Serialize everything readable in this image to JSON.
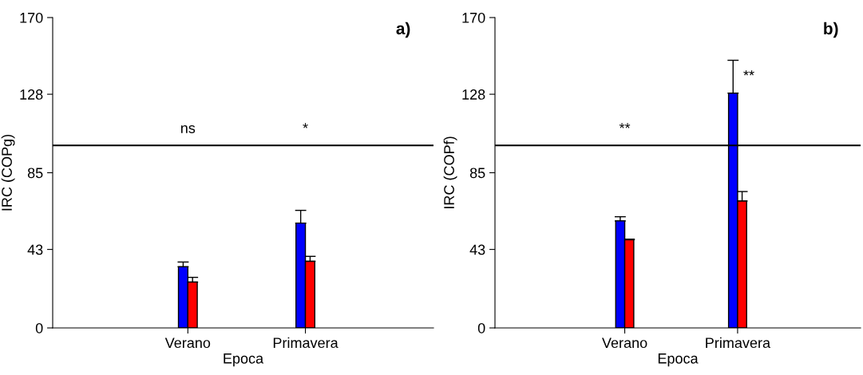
{
  "chart_data": [
    {
      "type": "bar",
      "title": "a)",
      "xlabel": "Epoca",
      "ylabel": "IRC (COPg)",
      "categories": [
        "Verano",
        "Primavera"
      ],
      "series": [
        {
          "color": "#0000ff",
          "values": [
            33.5,
            57.4
          ],
          "errors": [
            [
              33.5,
              36.1
            ],
            [
              57.4,
              64.4
            ]
          ]
        },
        {
          "color": "#ff0000",
          "values": [
            25.1,
            36.5
          ],
          "errors": [
            [
              25.1,
              27.7
            ],
            [
              36.5,
              39.2
            ]
          ]
        }
      ],
      "ylim": [
        0,
        170
      ],
      "yticks": [
        0,
        43,
        85,
        128,
        170
      ],
      "grid": false,
      "legend": false,
      "ref_lines": [
        {
          "axis": "y",
          "value": 100,
          "color": "#000000"
        }
      ],
      "annotations": [
        "ns",
        "*"
      ]
    },
    {
      "type": "bar",
      "title": "b)",
      "xlabel": "Epoca",
      "ylabel": "IRC (COPf)",
      "categories": [
        "Verano",
        "Primavera"
      ],
      "series": [
        {
          "color": "#0000ff",
          "values": [
            58.6,
            128.6
          ],
          "errors": [
            [
              58.6,
              60.9
            ],
            [
              128.6,
              146.6
            ]
          ]
        },
        {
          "color": "#ff0000",
          "values": [
            48.3,
            69.5
          ],
          "errors": [
            [
              48.3,
              48.6
            ],
            [
              69.5,
              74.7
            ]
          ]
        }
      ],
      "ylim": [
        0,
        170
      ],
      "yticks": [
        0,
        43,
        85,
        128,
        170
      ],
      "grid": false,
      "legend": false,
      "ref_lines": [
        {
          "axis": "y",
          "value": 100,
          "color": "#000000"
        }
      ],
      "annotations": [
        "**",
        "**"
      ]
    }
  ]
}
